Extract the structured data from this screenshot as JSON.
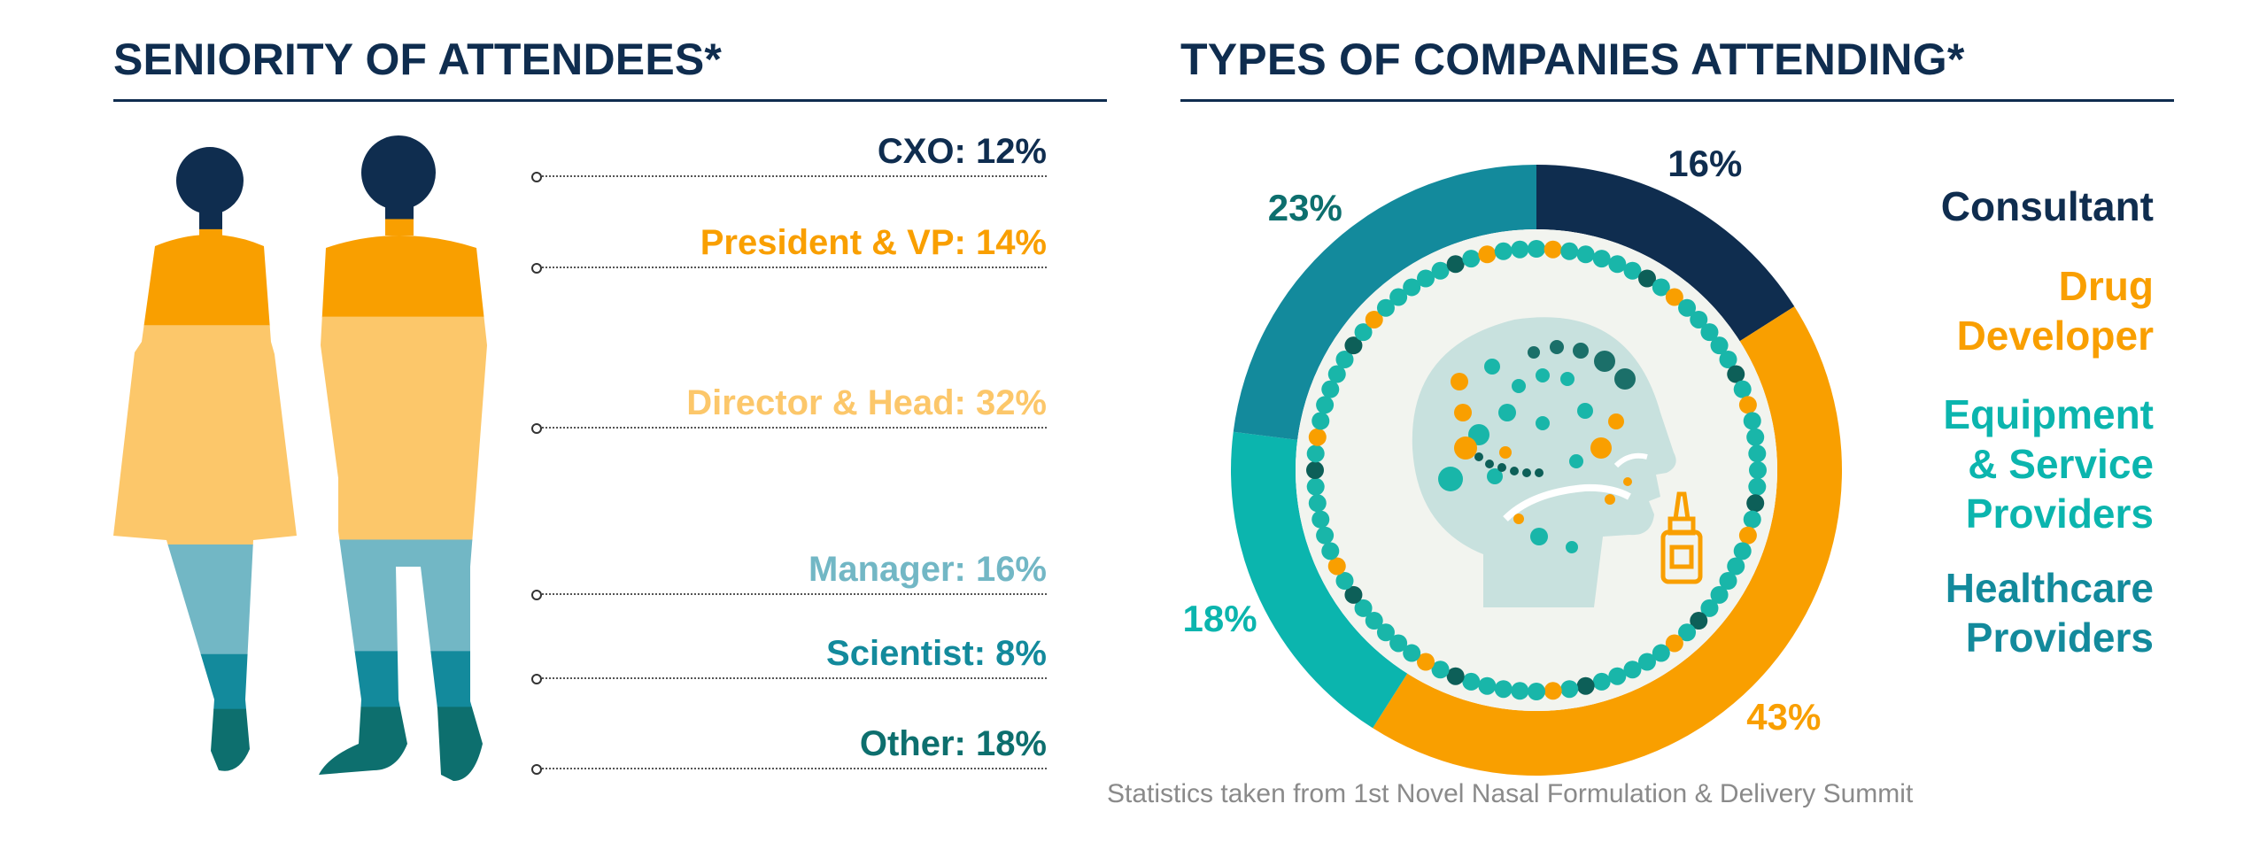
{
  "left_title": "SENIORITY OF ATTENDEES*",
  "right_title": "TYPES OF COMPANIES ATTENDING*",
  "source_note": "Statistics taken from 1st Novel Nasal Formulation & Delivery Summit",
  "colors": {
    "navy": "#0f2d4f",
    "orange": "#f99f00",
    "light_orange": "#fcc76a",
    "light_teal": "#72b7c5",
    "teal": "#138a9c",
    "dark_teal": "#0d6f6e",
    "bright_teal": "#0bb5ae"
  },
  "chart_data": [
    {
      "type": "bar",
      "title": "SENIORITY OF ATTENDEES*",
      "categories": [
        "CXO",
        "President & VP",
        "Director & Head",
        "Manager",
        "Scientist",
        "Other"
      ],
      "values": [
        12,
        14,
        32,
        16,
        8,
        18
      ],
      "labels": [
        "CXO: 12%",
        "President & VP: 14%",
        "Director & Head: 32%",
        "Manager: 16%",
        "Scientist: 8%",
        "Other: 18%"
      ],
      "colors": [
        "#0f2d4f",
        "#f99f00",
        "#fcc76a",
        "#72b7c5",
        "#138a9c",
        "#0d6f6e"
      ],
      "unit": "%",
      "stacking": "vertical silhouette fill, top to bottom"
    },
    {
      "type": "pie",
      "title": "TYPES OF COMPANIES ATTENDING*",
      "style": "donut",
      "categories": [
        "Consultant",
        "Drug Developer",
        "Equipment & Service Providers",
        "Healthcare Providers"
      ],
      "values": [
        16,
        43,
        18,
        23
      ],
      "labels": [
        "16%",
        "43%",
        "18%",
        "23%"
      ],
      "legend": [
        "Consultant",
        "Drug\nDeveloper",
        "Equipment\n& Service\nProviders",
        "Healthcare\nProviders"
      ],
      "colors": [
        "#0f2d4f",
        "#f99f00",
        "#0bb5ae",
        "#138a9c"
      ],
      "legend_placement": "right",
      "start": "top, clockwise"
    }
  ]
}
